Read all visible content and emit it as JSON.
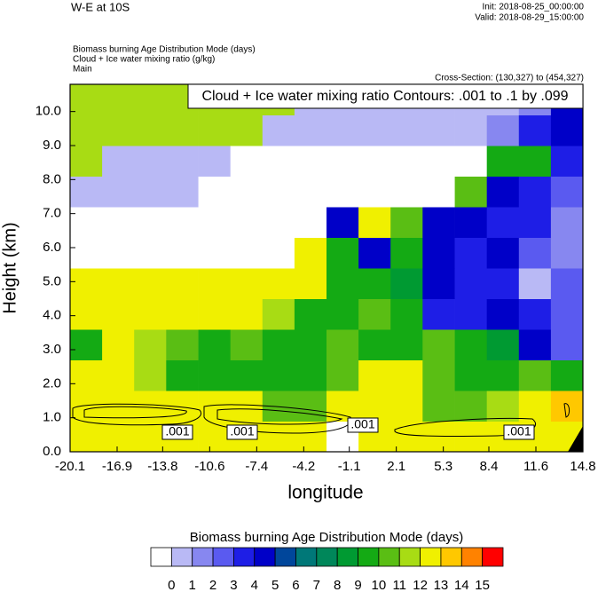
{
  "chart_data": {
    "type": "contour",
    "title": "W-E at 10S",
    "init": "Init: 2018-08-25_00:00:00",
    "valid": "Valid: 2018-08-29_15:00:00",
    "field_names": [
      "Biomass burning Age Distribution Mode   (days)",
      "Cloud + Ice water mixing ratio   (g/kg)",
      "Main"
    ],
    "cross_section": "Cross-Section: (130,327) to (454,327)",
    "annotation": "Cloud + Ice water mixing ratio Contours: .001 to .1 by .099",
    "contour_labels": [
      ".001",
      ".001",
      ".001",
      ".001"
    ],
    "x_label": "longitude",
    "y_label": "Height (km)",
    "xlim": [
      -20.1,
      14.8
    ],
    "ylim": [
      0,
      10.8
    ],
    "xticks": [
      -20.1,
      -16.9,
      -13.8,
      -10.6,
      -7.4,
      -4.2,
      -1.1,
      2.1,
      5.3,
      8.4,
      11.6,
      14.8
    ],
    "yticks": [
      {
        "value": 0,
        "label": "0.0"
      },
      {
        "value": 1,
        "label": "1.0"
      },
      {
        "value": 2,
        "label": "2.0"
      },
      {
        "value": 3,
        "label": "3.0"
      },
      {
        "value": 4,
        "label": "4.0"
      },
      {
        "value": 5,
        "label": "5.0"
      },
      {
        "value": 6,
        "label": "6.0"
      },
      {
        "value": 7,
        "label": "7.0"
      },
      {
        "value": 8,
        "label": "8.0"
      },
      {
        "value": 9,
        "label": "9.0"
      },
      {
        "value": 10,
        "label": "10.0"
      }
    ],
    "x": [
      -19.01,
      -16.83,
      -14.65,
      -12.47,
      -10.28,
      -8.1,
      -5.92,
      -3.74,
      -1.56,
      0.62,
      2.8,
      4.98,
      7.17,
      9.35,
      11.53,
      13.71
    ],
    "y": [
      0.45,
      1.35,
      2.25,
      3.15,
      4.05,
      4.95,
      5.85,
      6.75,
      7.65,
      8.55,
      9.45,
      10.35
    ],
    "values": [
      [
        12.5,
        12.5,
        12.5,
        12.5,
        12.5,
        12.5,
        12.5,
        12.5,
        -0.5,
        12.5,
        12.5,
        12.5,
        12.5,
        12.5,
        12.5,
        12.5
      ],
      [
        12.5,
        12.5,
        12.5,
        12.5,
        12.5,
        12.5,
        10.5,
        10.5,
        12.5,
        12.5,
        12.5,
        10.5,
        10.5,
        11.5,
        12.5,
        13.5
      ],
      [
        12.5,
        12.5,
        11.5,
        9.5,
        9.5,
        9.5,
        9.5,
        9.5,
        10.5,
        12.5,
        12.5,
        10.5,
        9.5,
        9.5,
        10.5,
        9.5
      ],
      [
        9.5,
        12.5,
        11.5,
        10.5,
        9.5,
        10.5,
        9.5,
        9.5,
        10.5,
        9.5,
        9.5,
        10.5,
        9.5,
        8.5,
        4.5,
        2.5
      ],
      [
        12.5,
        12.5,
        12.5,
        12.5,
        12.5,
        12.5,
        11.5,
        9.5,
        9.5,
        10.5,
        9.5,
        3.5,
        3.5,
        4.5,
        3.5,
        2.5
      ],
      [
        12.5,
        12.5,
        12.5,
        12.5,
        12.5,
        12.5,
        12.5,
        12.5,
        9.5,
        9.5,
        8.5,
        4.5,
        3.5,
        3.5,
        0.5,
        2.5
      ],
      [
        -0.5,
        -0.5,
        -0.5,
        -0.5,
        -0.5,
        -0.5,
        -0.5,
        12.5,
        9.5,
        4.5,
        9.5,
        4.5,
        3.5,
        4.5,
        2.5,
        1.5
      ],
      [
        -0.5,
        -0.5,
        -0.5,
        -0.5,
        -0.5,
        -0.5,
        -0.5,
        -0.5,
        4.5,
        12.5,
        10.5,
        4.5,
        4.5,
        3.5,
        3.5,
        1.5
      ],
      [
        0.5,
        0.5,
        0.5,
        0.5,
        -0.5,
        -0.5,
        -0.5,
        -0.5,
        -0.5,
        -0.5,
        -0.5,
        -0.5,
        10.5,
        4.5,
        3.5,
        2.5
      ],
      [
        11.5,
        0.5,
        0.5,
        0.5,
        0.5,
        -0.5,
        -0.5,
        -0.5,
        -0.5,
        -0.5,
        -0.5,
        -0.5,
        -0.5,
        9.5,
        9.5,
        3.5
      ],
      [
        11.5,
        11.5,
        11.5,
        11.5,
        11.5,
        11.5,
        0.5,
        0.5,
        0.5,
        0.5,
        0.5,
        0.5,
        0.5,
        1.5,
        3.5,
        4.5
      ],
      [
        11.5,
        11.5,
        11.5,
        11.5,
        11.5,
        11.5,
        11.5,
        0.5,
        0.5,
        0.5,
        0.5,
        0.5,
        0.5,
        0.5,
        1.5,
        4.5
      ]
    ],
    "colorbar": {
      "title": "Biomass burning Age Distribution Mode  (days)",
      "levels": [
        0,
        1,
        2,
        3,
        4,
        5,
        6,
        7,
        8,
        9,
        10,
        11,
        12,
        13,
        14,
        15
      ],
      "colors": [
        "#ffffff",
        "#b9b9f5",
        "#8787f0",
        "#5a5af0",
        "#1e1ee6",
        "#0000c8",
        "#00469b",
        "#007878",
        "#00875a",
        "#009a32",
        "#14aa14",
        "#5abe14",
        "#a8dc14",
        "#f0f000",
        "#ffc800",
        "#ff8200",
        "#ff0000"
      ]
    }
  }
}
